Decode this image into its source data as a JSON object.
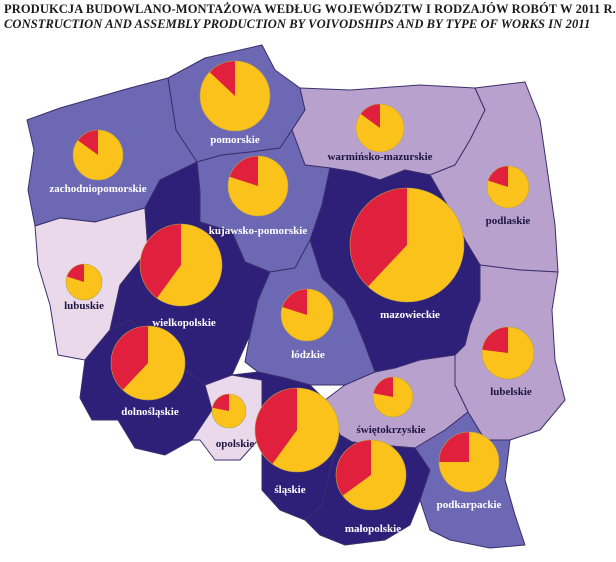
{
  "title": {
    "pl": "PRODUKCJA BUDOWLANO-MONTAŻOWA WEDŁUG WOJEWÓDZTW I RODZAJÓW ROBÓT W 2011 R.",
    "en": "CONSTRUCTION AND ASSEMBLY PRODUCTION BY VOIVODSHIPS AND BY TYPE OF WORKS IN 2011"
  },
  "colors": {
    "dark": "#2e1f78",
    "medium": "#6d68b3",
    "light": "#b8a2cd",
    "pale": "#ead9ea",
    "slice_red": "#e0203c",
    "slice_yellow": "#fcc21c",
    "sea": "#ffffff"
  },
  "regions": [
    {
      "id": "zachodniopomorskie",
      "label": "zachodniopomorskie",
      "shade": "medium",
      "label_color": "white",
      "red_share": 0.15
    },
    {
      "id": "pomorskie",
      "label": "pomorskie",
      "shade": "medium",
      "label_color": "white",
      "red_share": 0.13
    },
    {
      "id": "warminsko-mazurskie",
      "label": "warmińsko-mazurskie",
      "shade": "light",
      "label_color": "dark",
      "red_share": 0.15
    },
    {
      "id": "podlaskie",
      "label": "podlaskie",
      "shade": "light",
      "label_color": "dark",
      "red_share": 0.2
    },
    {
      "id": "kujawsko-pomorskie",
      "label": "kujawsko-pomorskie",
      "shade": "medium",
      "label_color": "white",
      "red_share": 0.2
    },
    {
      "id": "lubuskie",
      "label": "lubuskie",
      "shade": "pale",
      "label_color": "dark",
      "red_share": 0.2
    },
    {
      "id": "wielkopolskie",
      "label": "wielkopolskie",
      "shade": "dark",
      "label_color": "white",
      "red_share": 0.4
    },
    {
      "id": "mazowieckie",
      "label": "mazowieckie",
      "shade": "dark",
      "label_color": "white",
      "red_share": 0.38
    },
    {
      "id": "lodzkie",
      "label": "łódzkie",
      "shade": "medium",
      "label_color": "white",
      "red_share": 0.2
    },
    {
      "id": "lubelskie",
      "label": "lubelskie",
      "shade": "light",
      "label_color": "dark",
      "red_share": 0.23
    },
    {
      "id": "dolnoslaskie",
      "label": "dolnośląskie",
      "shade": "dark",
      "label_color": "white",
      "red_share": 0.38
    },
    {
      "id": "opolskie",
      "label": "opolskie",
      "shade": "pale",
      "label_color": "dark",
      "red_share": 0.22
    },
    {
      "id": "slaskie",
      "label": "śląskie",
      "shade": "dark",
      "label_color": "white",
      "red_share": 0.4
    },
    {
      "id": "swietokrzyskie",
      "label": "świętokrzyskie",
      "shade": "light",
      "label_color": "dark",
      "red_share": 0.22
    },
    {
      "id": "malopolskie",
      "label": "małopolskie",
      "shade": "dark",
      "label_color": "white",
      "red_share": 0.35
    },
    {
      "id": "podkarpackie",
      "label": "podkarpackie",
      "shade": "medium",
      "label_color": "white",
      "red_share": 0.25
    }
  ]
}
